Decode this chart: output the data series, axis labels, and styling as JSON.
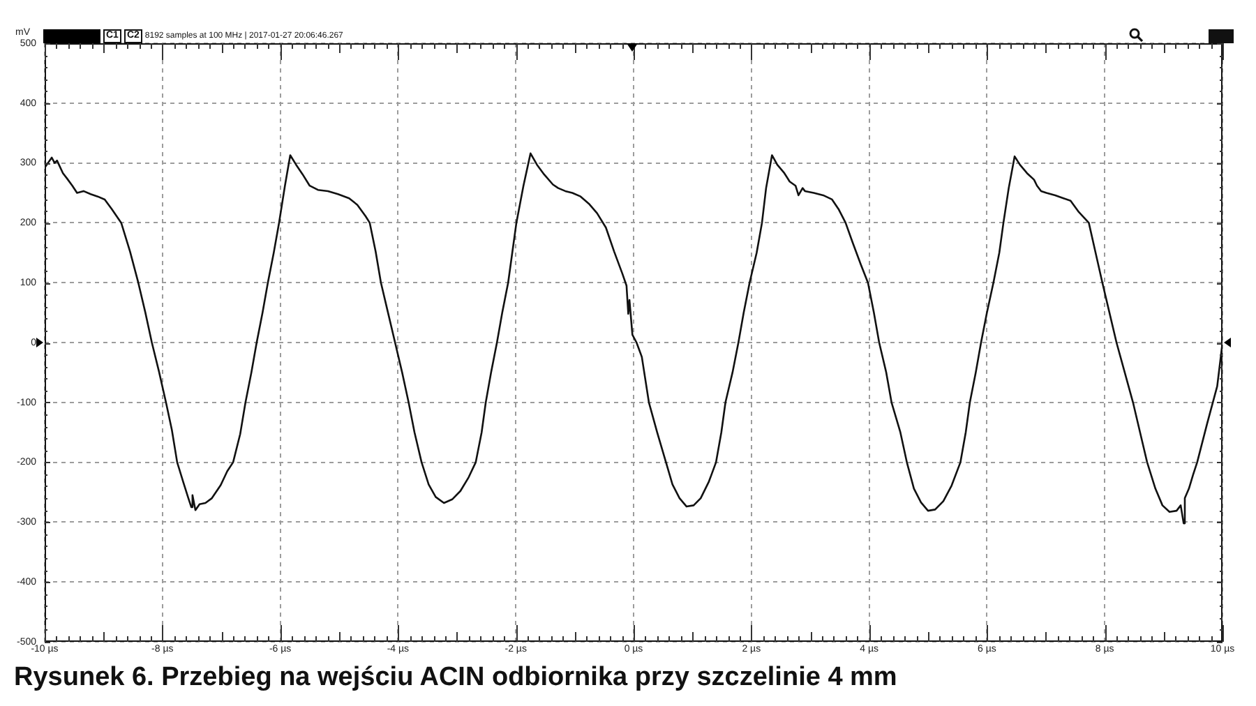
{
  "chart_data": {
    "type": "line",
    "title": "Rysunek 6. Przebieg na wejściu ACIN odbiornika przy szczelinie 4 mm",
    "ylabel": "mV",
    "annotations": [
      "C1",
      "C2",
      "8192 samples at 100 MHz | 2017-01-27 20:06:46.267"
    ],
    "x": [
      -10.0,
      -9.88,
      -9.83,
      -9.79,
      -9.69,
      -9.62,
      -9.53,
      -9.45,
      -9.34,
      -9.22,
      -9.1,
      -8.98,
      -8.86,
      -8.7,
      -8.55,
      -8.41,
      -8.29,
      -8.18,
      -8.06,
      -7.94,
      -7.84,
      -7.75,
      -7.65,
      -7.56,
      -7.51,
      -7.49,
      -7.44,
      -7.37,
      -7.27,
      -7.16,
      -7.01,
      -6.9,
      -6.8,
      -6.68,
      -6.59,
      -6.49,
      -6.4,
      -6.3,
      -6.21,
      -6.11,
      -6.02,
      -5.92,
      -5.83,
      -5.73,
      -5.62,
      -5.5,
      -5.36,
      -5.19,
      -5.02,
      -4.83,
      -4.69,
      -4.55,
      -4.48,
      -4.38,
      -4.29,
      -4.17,
      -4.05,
      -3.93,
      -3.82,
      -3.72,
      -3.6,
      -3.48,
      -3.36,
      -3.22,
      -3.08,
      -2.94,
      -2.8,
      -2.68,
      -2.58,
      -2.51,
      -2.42,
      -2.32,
      -2.23,
      -2.13,
      -2.06,
      -1.99,
      -1.87,
      -1.75,
      -1.64,
      -1.52,
      -1.37,
      -1.28,
      -1.16,
      -1.04,
      -0.9,
      -0.76,
      -0.62,
      -0.47,
      -0.33,
      -0.19,
      -0.12,
      -0.09,
      -0.07,
      -0.02,
      0.05,
      0.14,
      0.26,
      0.4,
      0.55,
      0.66,
      0.78,
      0.9,
      1.02,
      1.14,
      1.28,
      1.4,
      1.49,
      1.56,
      1.68,
      1.78,
      1.87,
      1.97,
      2.09,
      2.18,
      2.25,
      2.35,
      2.44,
      2.56,
      2.65,
      2.75,
      2.8,
      2.87,
      2.91,
      3.06,
      3.22,
      3.37,
      3.48,
      3.6,
      3.72,
      3.86,
      3.98,
      4.08,
      4.17,
      4.29,
      4.38,
      4.53,
      4.64,
      4.76,
      4.88,
      5.0,
      5.12,
      5.26,
      5.4,
      5.55,
      5.64,
      5.71,
      5.81,
      5.9,
      6.0,
      6.11,
      6.21,
      6.28,
      6.37,
      6.47,
      6.56,
      6.68,
      6.8,
      6.85,
      6.92,
      7.01,
      7.16,
      7.3,
      7.42,
      7.56,
      7.73,
      7.84,
      7.96,
      8.08,
      8.2,
      8.34,
      8.48,
      8.6,
      8.72,
      8.86,
      8.98,
      9.1,
      9.22,
      9.29,
      9.34,
      9.36,
      9.43,
      9.5,
      9.57,
      9.74,
      9.91,
      10.0
    ],
    "series": [
      {
        "color": "#111111",
        "values": [
          292,
          309,
          300,
          304,
          283,
          274,
          262,
          250,
          253,
          248,
          244,
          239,
          223,
          200,
          152,
          100,
          50,
          0,
          -48,
          -100,
          -146,
          -200,
          -232,
          -260,
          -275,
          -255,
          -280,
          -270,
          -268,
          -260,
          -238,
          -215,
          -200,
          -153,
          -100,
          -50,
          0,
          50,
          100,
          150,
          200,
          262,
          313,
          297,
          281,
          262,
          255,
          253,
          248,
          241,
          230,
          211,
          200,
          152,
          100,
          50,
          0,
          -50,
          -100,
          -150,
          -200,
          -237,
          -258,
          -268,
          -262,
          -248,
          -225,
          -200,
          -150,
          -100,
          -50,
          0,
          50,
          100,
          150,
          200,
          262,
          316,
          297,
          281,
          264,
          258,
          253,
          250,
          244,
          232,
          216,
          192,
          152,
          115,
          95,
          48,
          71,
          13,
          0,
          -24,
          -100,
          -150,
          -200,
          -237,
          -260,
          -274,
          -272,
          -260,
          -232,
          -200,
          -150,
          -100,
          -50,
          0,
          50,
          100,
          150,
          200,
          258,
          313,
          297,
          283,
          269,
          262,
          246,
          258,
          253,
          250,
          246,
          239,
          223,
          200,
          167,
          130,
          100,
          50,
          0,
          -50,
          -100,
          -150,
          -200,
          -244,
          -267,
          -281,
          -279,
          -265,
          -239,
          -200,
          -150,
          -100,
          -50,
          0,
          50,
          100,
          150,
          200,
          258,
          311,
          297,
          283,
          272,
          262,
          253,
          250,
          246,
          241,
          237,
          218,
          200,
          152,
          100,
          50,
          0,
          -50,
          -100,
          -150,
          -200,
          -244,
          -272,
          -283,
          -281,
          -272,
          -302,
          -260,
          -244,
          -221,
          -200,
          -135,
          -73,
          0
        ]
      }
    ],
    "xlim": [
      -10,
      10
    ],
    "xticks": [
      {
        "value": -10,
        "label": "-10 µs"
      },
      {
        "value": -8,
        "label": "-8 µs"
      },
      {
        "value": -6,
        "label": "-6 µs"
      },
      {
        "value": -4,
        "label": "-4 µs"
      },
      {
        "value": -2,
        "label": "-2 µs"
      },
      {
        "value": 0,
        "label": "0 µs"
      },
      {
        "value": 2,
        "label": "2 µs"
      },
      {
        "value": 4,
        "label": "4 µs"
      },
      {
        "value": 6,
        "label": "6 µs"
      },
      {
        "value": 8,
        "label": "8 µs"
      },
      {
        "value": 10,
        "label": "10 µs"
      }
    ],
    "ylim": [
      -500,
      500
    ],
    "yticks": [
      -500,
      -400,
      -300,
      -200,
      -100,
      0,
      100,
      200,
      300,
      400,
      500
    ],
    "grid": true
  }
}
